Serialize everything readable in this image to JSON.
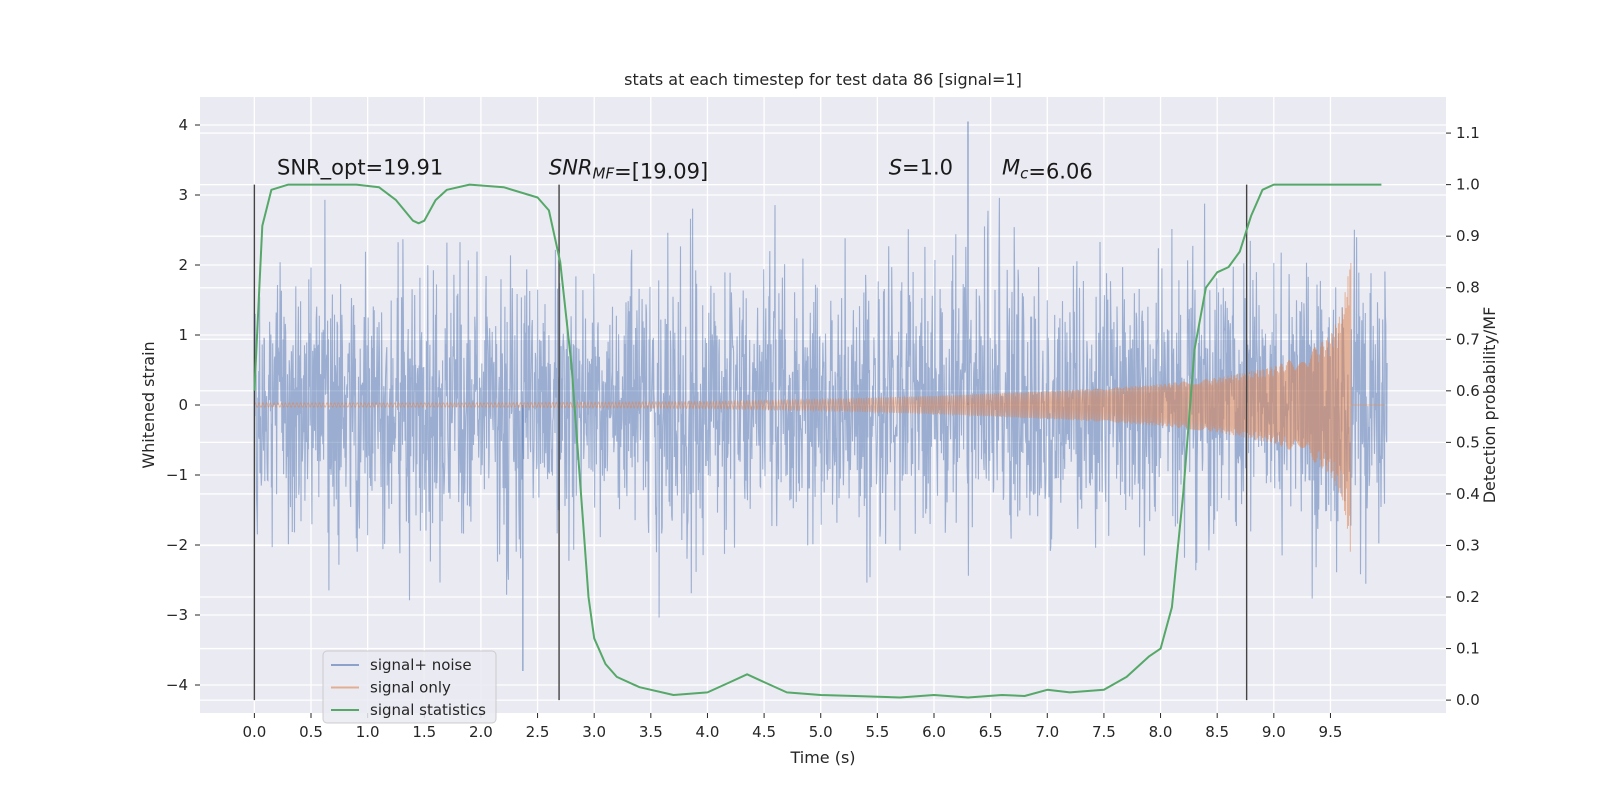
{
  "chart_data": {
    "type": "line",
    "title": "stats at each timestep for test data 86 [signal=1]",
    "xlabel": "Time (s)",
    "ylabel": "Whitened strain",
    "y2label": "Detection probability/MF",
    "xlim": [
      -0.48,
      10.52
    ],
    "ylim": [
      -4.4,
      4.4
    ],
    "y2lim": [
      -0.025,
      1.17
    ],
    "x_ticks": [
      0.0,
      0.5,
      1.0,
      1.5,
      2.0,
      2.5,
      3.0,
      3.5,
      4.0,
      4.5,
      5.0,
      5.5,
      6.0,
      6.5,
      7.0,
      7.5,
      8.0,
      8.5,
      9.0,
      9.5
    ],
    "x_tick_labels": [
      "0.0",
      "0.5",
      "1.0",
      "1.5",
      "2.0",
      "2.5",
      "3.0",
      "3.5",
      "4.0",
      "4.5",
      "5.0",
      "5.5",
      "6.0",
      "6.5",
      "7.0",
      "7.5",
      "8.0",
      "8.5",
      "9.0",
      "9.5"
    ],
    "y_ticks": [
      -4,
      -3,
      -2,
      -1,
      0,
      1,
      2,
      3,
      4
    ],
    "y_tick_labels": [
      "−4",
      "−3",
      "−2",
      "−1",
      "0",
      "1",
      "2",
      "3",
      "4"
    ],
    "y2_ticks": [
      0.0,
      0.1,
      0.2,
      0.3,
      0.4,
      0.5,
      0.6,
      0.7,
      0.8,
      0.9,
      1.0,
      1.1
    ],
    "y2_tick_labels": [
      "0.0",
      "0.1",
      "0.2",
      "0.3",
      "0.4",
      "0.5",
      "0.6",
      "0.7",
      "0.8",
      "0.9",
      "1.0",
      "1.1"
    ],
    "grid": true,
    "legend_position": "lower-left",
    "series": [
      {
        "name": "signal+ noise",
        "color": "#4c72b0",
        "opacity": 0.5,
        "x_range": [
          0.0,
          9.5
        ],
        "note_levels": {
          "typical_peak": 2.2,
          "max": 4.05,
          "min": -3.8
        }
      },
      {
        "name": "signal only",
        "color": "#dd8452",
        "opacity": 0.5,
        "envelope": {
          "x": [
            0.0,
            2.0,
            4.0,
            5.0,
            6.0,
            7.0,
            7.5,
            8.0,
            8.5,
            9.0,
            9.3,
            9.5,
            9.6,
            9.65,
            9.68
          ],
          "amplitude": [
            0.03,
            0.03,
            0.05,
            0.08,
            0.13,
            0.2,
            0.24,
            0.3,
            0.39,
            0.55,
            0.75,
            1.0,
            1.35,
            1.8,
            2.15
          ]
        }
      },
      {
        "name": "signal statistics",
        "color": "#55a868",
        "x": [
          0.0,
          0.07,
          0.15,
          0.3,
          0.6,
          0.9,
          1.1,
          1.25,
          1.4,
          1.45,
          1.5,
          1.6,
          1.7,
          1.9,
          2.2,
          2.5,
          2.6,
          2.7,
          2.8,
          2.9,
          2.95,
          3.0,
          3.1,
          3.2,
          3.4,
          3.7,
          4.0,
          4.2,
          4.35,
          4.5,
          4.7,
          5.0,
          5.3,
          5.7,
          6.0,
          6.3,
          6.6,
          6.8,
          7.0,
          7.2,
          7.5,
          7.7,
          7.9,
          8.0,
          8.1,
          8.2,
          8.3,
          8.4,
          8.5,
          8.6,
          8.7,
          8.8,
          8.9,
          9.0,
          9.2,
          9.5,
          9.95
        ],
        "y": [
          0.6,
          0.92,
          0.99,
          1.0,
          1.0,
          1.0,
          0.995,
          0.97,
          0.93,
          0.925,
          0.93,
          0.97,
          0.99,
          1.0,
          0.995,
          0.975,
          0.95,
          0.85,
          0.65,
          0.35,
          0.2,
          0.12,
          0.07,
          0.045,
          0.025,
          0.01,
          0.015,
          0.035,
          0.05,
          0.035,
          0.015,
          0.01,
          0.008,
          0.005,
          0.01,
          0.005,
          0.01,
          0.008,
          0.02,
          0.015,
          0.02,
          0.045,
          0.085,
          0.1,
          0.18,
          0.4,
          0.68,
          0.8,
          0.83,
          0.84,
          0.87,
          0.94,
          0.99,
          1.0,
          1.0,
          1.0,
          1.0
        ]
      }
    ],
    "vertical_lines": [
      0.0,
      2.69,
      8.76
    ],
    "vertical_line_y_range": [
      -0.0,
      1.0
    ],
    "annotations": [
      {
        "x": 0.2,
        "y2": 1.02,
        "parts": [
          {
            "t": "SNR_opt=19.91",
            "it": false
          }
        ]
      },
      {
        "x": 2.6,
        "y2": 1.02,
        "parts": [
          {
            "t": "SNR",
            "it": true
          },
          {
            "t": "MF",
            "it": true,
            "sub": true
          },
          {
            "t": "=[19.09]",
            "it": false
          }
        ]
      },
      {
        "x": 5.6,
        "y2": 1.02,
        "parts": [
          {
            "t": "S",
            "it": true
          },
          {
            "t": "=1.0",
            "it": false
          }
        ]
      },
      {
        "x": 6.6,
        "y2": 1.02,
        "parts": [
          {
            "t": "M",
            "it": true
          },
          {
            "t": "c",
            "it": true,
            "sub": true
          },
          {
            "t": "=6.06",
            "it": false
          }
        ]
      }
    ]
  }
}
